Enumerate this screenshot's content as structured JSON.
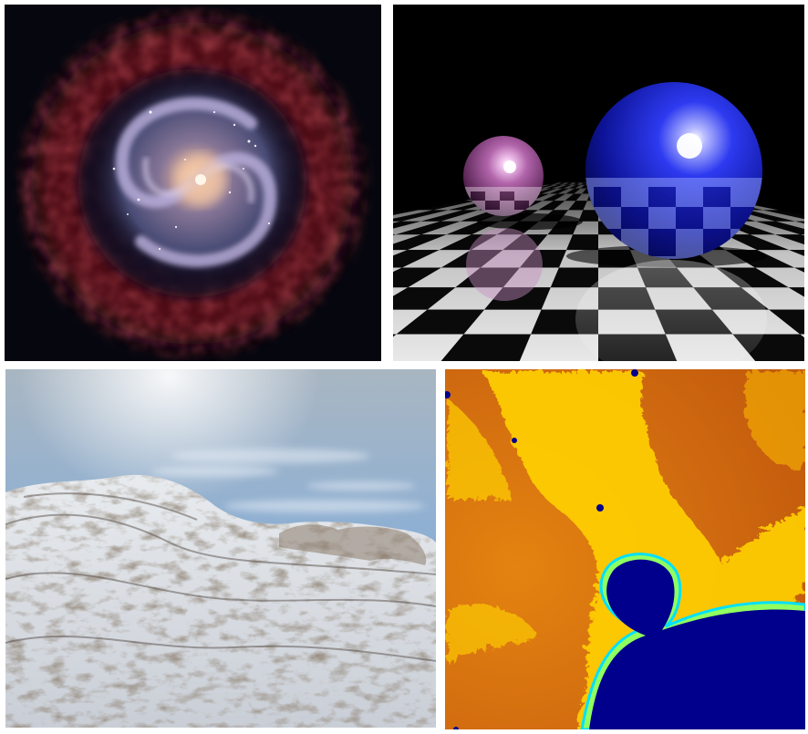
{
  "panels": [
    {
      "id": "galaxy",
      "icon": "spiral-galaxy-render"
    },
    {
      "id": "spheres",
      "icon": "raytraced-spheres-checkerboard"
    },
    {
      "id": "terrain",
      "icon": "procedural-snowy-terrain"
    },
    {
      "id": "fractal",
      "icon": "mandelbrot-fractal-zoom"
    }
  ],
  "colors": {
    "galaxy_background": "#06060f",
    "galaxy_outer_glow": "#7a1518",
    "galaxy_arm": "#9c93c8",
    "galaxy_core": "#f2d1b6",
    "spheres_sky": "#000000",
    "sphere_small": "#a4579f",
    "sphere_large": "#1b26d8",
    "floor_light": "#f4f4f4",
    "floor_dark": "#0b0b0b",
    "terrain_sky_top": "#9fb2c4",
    "terrain_sky_bottom": "#6f97c2",
    "terrain_snow": "#d7dbe0",
    "terrain_rock": "#5b4e43",
    "fractal_outer": "#d06a10",
    "fractal_band": "#ffd000",
    "fractal_edge": "#a6ff58",
    "fractal_set": "#00008c"
  }
}
